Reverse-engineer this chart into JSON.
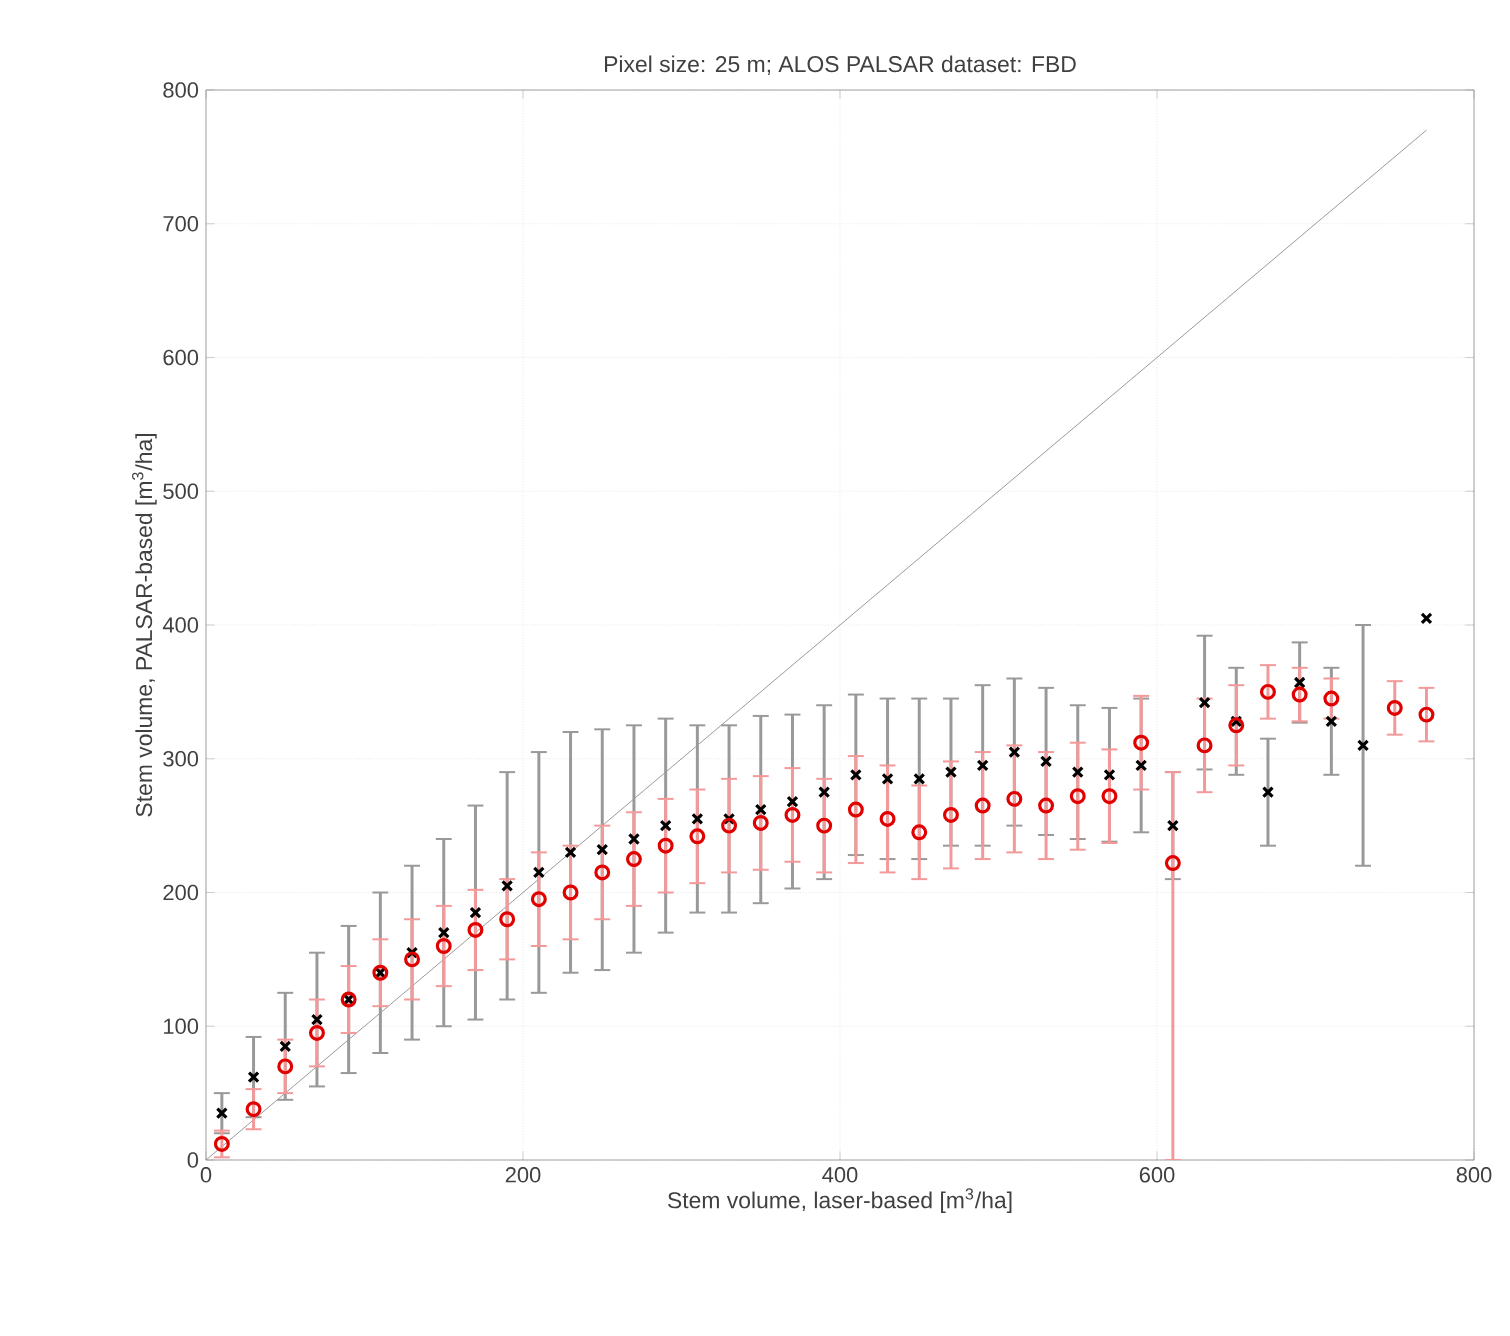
{
  "chart_data": {
    "type": "scatter",
    "title": "Pixel size: 25 m; ALOS PALSAR dataset: FBD",
    "xlabel": "Stem volume, laser-based   [m$^{3}$/ha]",
    "ylabel": "Stem volume,  PALSAR-based   [m$^{3}$/ha]",
    "xlim": [
      0,
      800
    ],
    "ylim": [
      0,
      800
    ],
    "xticks": [
      0,
      200,
      400,
      600,
      800
    ],
    "yticks": [
      0,
      100,
      200,
      300,
      400,
      500,
      600,
      700,
      800
    ],
    "grid": true,
    "series": [
      {
        "type": "line",
        "color": "#808080",
        "marker": "none",
        "x": [
          0,
          770
        ],
        "values": [
          0,
          770
        ]
      },
      {
        "color": "#000000",
        "marker": "cross",
        "x": [
          10,
          30,
          50,
          70,
          90,
          110,
          130,
          150,
          170,
          190,
          210,
          230,
          250,
          270,
          290,
          310,
          330,
          350,
          370,
          390,
          410,
          430,
          450,
          470,
          490,
          510,
          530,
          550,
          570,
          590,
          610,
          630,
          650,
          670,
          690,
          710,
          730,
          750,
          770
        ],
        "values": [
          35,
          62,
          85,
          105,
          120,
          140,
          155,
          170,
          185,
          205,
          215,
          230,
          232,
          240,
          250,
          255,
          255,
          262,
          268,
          275,
          288,
          285,
          285,
          290,
          295,
          305,
          298,
          290,
          288,
          295,
          250,
          342,
          328,
          275,
          357,
          328,
          310,
          null,
          405
        ],
        "errors": [
          15,
          30,
          40,
          50,
          55,
          60,
          65,
          70,
          80,
          85,
          90,
          90,
          90,
          85,
          80,
          70,
          70,
          70,
          65,
          65,
          60,
          60,
          60,
          55,
          60,
          55,
          55,
          50,
          50,
          50,
          40,
          50,
          40,
          40,
          30,
          40,
          90,
          null,
          null
        ]
      },
      {
        "color": "#e00000",
        "marker": "circle",
        "x": [
          10,
          30,
          50,
          70,
          90,
          110,
          130,
          150,
          170,
          190,
          210,
          230,
          250,
          270,
          290,
          310,
          330,
          350,
          370,
          390,
          410,
          430,
          450,
          470,
          490,
          510,
          530,
          550,
          570,
          590,
          610,
          630,
          650,
          670,
          690,
          710,
          730,
          750,
          770
        ],
        "values": [
          12,
          38,
          70,
          95,
          120,
          140,
          150,
          160,
          172,
          180,
          195,
          200,
          215,
          225,
          235,
          242,
          250,
          252,
          258,
          250,
          262,
          255,
          245,
          258,
          265,
          270,
          265,
          272,
          272,
          312,
          222,
          310,
          325,
          350,
          348,
          345,
          null,
          338,
          333
        ],
        "errors": [
          10,
          15,
          20,
          25,
          25,
          25,
          30,
          30,
          30,
          30,
          35,
          35,
          35,
          35,
          35,
          35,
          35,
          35,
          35,
          35,
          40,
          40,
          35,
          40,
          40,
          40,
          40,
          40,
          35,
          35,
          [
            0,
            290
          ],
          35,
          30,
          20,
          20,
          15,
          null,
          20,
          20
        ]
      }
    ]
  }
}
